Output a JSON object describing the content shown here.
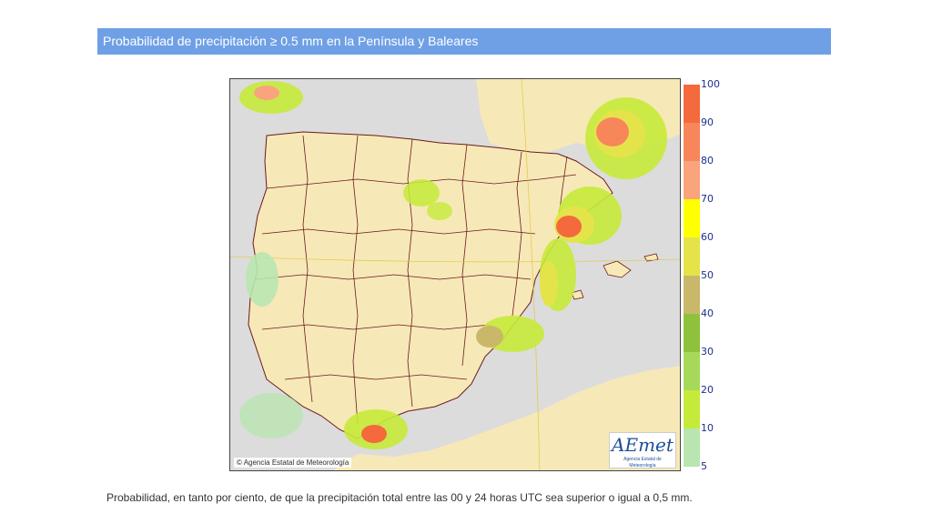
{
  "header": {
    "title": "Probabilidad de precipitación ≥ 0.5 mm en la Península y Baleares"
  },
  "map": {
    "copyright": "Agencia Estatal de Meteorología",
    "logo_text": "AEmet",
    "logo_subtext": "Agencia Estatal de Meteorología",
    "colors": {
      "sea": "#dcdcdc",
      "land": "#f7e8b8",
      "border": "#6b1a1a"
    }
  },
  "legend": {
    "levels": [
      {
        "label": "100",
        "color": "#f46a3c"
      },
      {
        "label": "90",
        "color": "#f7875a"
      },
      {
        "label": "80",
        "color": "#f9a47c"
      },
      {
        "label": "70",
        "color": "#ffff00"
      },
      {
        "label": "60",
        "color": "#e4e44a"
      },
      {
        "label": "50",
        "color": "#c9b86a"
      },
      {
        "label": "40",
        "color": "#8fc23c"
      },
      {
        "label": "30",
        "color": "#a6d95a"
      },
      {
        "label": "20",
        "color": "#c6ea3a"
      },
      {
        "label": "10",
        "color": "#d8f56b"
      },
      {
        "label": "5",
        "color": "#b9e5b0"
      }
    ]
  },
  "caption": "Probabilidad, en tanto por ciento, de que la precipitación total entre las 00 y 24 horas UTC sea superior o igual a 0,5 mm."
}
